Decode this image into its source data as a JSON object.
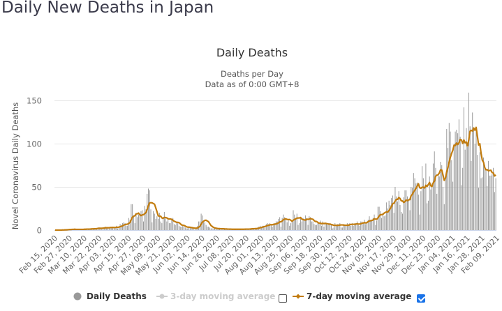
{
  "page": {
    "title": "Daily New Deaths in Japan"
  },
  "chart_data": {
    "type": "bar",
    "title": "Daily Deaths",
    "subtitle_lines": [
      "Deaths per Day",
      "Data as of 0:00 GMT+8"
    ],
    "ylabel": "Novel Coronavirus Daily Deaths",
    "xlabel": "",
    "ylim": [
      0,
      150
    ],
    "yticks": [
      0,
      50,
      100,
      150
    ],
    "grid": true,
    "start_date": "Feb 15, 2020",
    "x_tick_labels": [
      "Feb 15, 2020",
      "Feb 27, 2020",
      "Mar 10, 2020",
      "Mar 22, 2020",
      "Apr 03, 2020",
      "Apr 15, 2020",
      "Apr 27, 2020",
      "May 09, 2020",
      "May 21, 2020",
      "Jun 02, 2020",
      "Jun 14, 2020",
      "Jun 26, 2020",
      "Jul 08, 2020",
      "Jul 20, 2020",
      "Aug 01, 2020",
      "Aug 13, 2020",
      "Aug 25, 2020",
      "Sep 06, 2020",
      "Sep 18, 2020",
      "Sep 30, 2020",
      "Oct 12, 2020",
      "Oct 24, 2020",
      "Nov 05, 2020",
      "Nov 17, 2020",
      "Nov 29, 2020",
      "Dec 11, 2020",
      "Dec 23, 2020",
      "Jan 04, 2021",
      "Jan 16, 2021",
      "Jan 28, 2021",
      "Feb 09, 2021"
    ],
    "anchor_points_daily_deaths": [
      [
        0,
        0
      ],
      [
        10,
        1
      ],
      [
        20,
        1
      ],
      [
        30,
        2
      ],
      [
        40,
        3
      ],
      [
        50,
        5
      ],
      [
        55,
        8
      ],
      [
        60,
        14
      ],
      [
        63,
        30
      ],
      [
        66,
        20
      ],
      [
        70,
        22
      ],
      [
        73,
        28
      ],
      [
        76,
        48
      ],
      [
        80,
        22
      ],
      [
        85,
        20
      ],
      [
        90,
        15
      ],
      [
        95,
        12
      ],
      [
        100,
        8
      ],
      [
        105,
        4
      ],
      [
        110,
        3
      ],
      [
        115,
        2
      ],
      [
        120,
        17
      ],
      [
        125,
        4
      ],
      [
        130,
        2
      ],
      [
        140,
        1
      ],
      [
        150,
        1
      ],
      [
        160,
        2
      ],
      [
        170,
        5
      ],
      [
        180,
        10
      ],
      [
        185,
        14
      ],
      [
        190,
        13
      ],
      [
        195,
        18
      ],
      [
        200,
        14
      ],
      [
        205,
        14
      ],
      [
        210,
        10
      ],
      [
        215,
        8
      ],
      [
        220,
        8
      ],
      [
        225,
        6
      ],
      [
        230,
        7
      ],
      [
        235,
        7
      ],
      [
        240,
        8
      ],
      [
        245,
        8
      ],
      [
        250,
        10
      ],
      [
        255,
        12
      ],
      [
        260,
        18
      ],
      [
        265,
        22
      ],
      [
        270,
        32
      ],
      [
        275,
        40
      ],
      [
        280,
        45
      ],
      [
        285,
        46
      ],
      [
        290,
        50
      ],
      [
        295,
        55
      ],
      [
        300,
        60
      ],
      [
        305,
        62
      ],
      [
        310,
        72
      ],
      [
        315,
        75
      ],
      [
        320,
        95
      ],
      [
        325,
        100
      ],
      [
        330,
        108
      ],
      [
        335,
        118
      ],
      [
        338,
        120
      ],
      [
        342,
        100
      ],
      [
        346,
        90
      ],
      [
        350,
        75
      ],
      [
        353,
        80
      ],
      [
        356,
        65
      ],
      [
        359,
        60
      ]
    ],
    "series": [
      {
        "name": "Daily Deaths",
        "color": "#999999",
        "visible": true
      },
      {
        "name": "3-day moving average",
        "color": "#cccccc",
        "visible": false
      },
      {
        "name": "7-day moving average",
        "color": "#c27c0e",
        "visible": true
      }
    ],
    "legend_position": "bottom",
    "legend_checkboxes": [
      false,
      true
    ]
  }
}
